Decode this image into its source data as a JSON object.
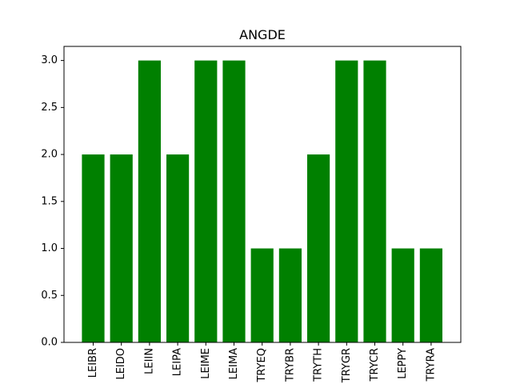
{
  "chart_data": {
    "type": "bar",
    "title": "ANGDE",
    "xlabel": "",
    "ylabel": "",
    "categories": [
      "LEIBR",
      "LEIDO",
      "LEIIN",
      "LEIPA",
      "LEIME",
      "LEIMA",
      "TRYEQ",
      "TRYBR",
      "TRYTH",
      "TRYGR",
      "TRYCR",
      "LEPPY",
      "TRYRA"
    ],
    "values": [
      2,
      2,
      3,
      2,
      3,
      3,
      1,
      1,
      2,
      3,
      3,
      1,
      1
    ],
    "ylim": [
      0,
      3.15
    ],
    "yticks": [
      0.0,
      0.5,
      1.0,
      1.5,
      2.0,
      2.5,
      3.0
    ],
    "ytick_labels": [
      "0.0",
      "0.5",
      "1.0",
      "1.5",
      "2.0",
      "2.5",
      "3.0"
    ],
    "grid": false,
    "bar_color": "#008000"
  }
}
